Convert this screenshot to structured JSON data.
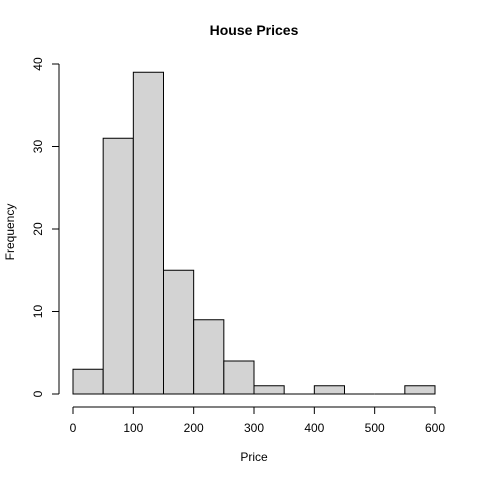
{
  "chart_data": {
    "type": "bar",
    "title": "House Prices",
    "xlabel": "Price",
    "ylabel": "Frequency",
    "bin_edges": [
      0,
      50,
      100,
      150,
      200,
      250,
      300,
      350,
      400,
      450,
      500,
      550,
      600
    ],
    "values": [
      3,
      31,
      39,
      15,
      9,
      4,
      1,
      0,
      1,
      0,
      0,
      1
    ],
    "xlim": [
      0,
      600
    ],
    "ylim": [
      0,
      40
    ],
    "xticks": [
      "0",
      "100",
      "200",
      "300",
      "400",
      "500",
      "600"
    ],
    "yticks": [
      "0",
      "10",
      "20",
      "30",
      "40"
    ],
    "grid": false,
    "bar_color": "#d3d3d3",
    "edge_color": "#000000"
  }
}
